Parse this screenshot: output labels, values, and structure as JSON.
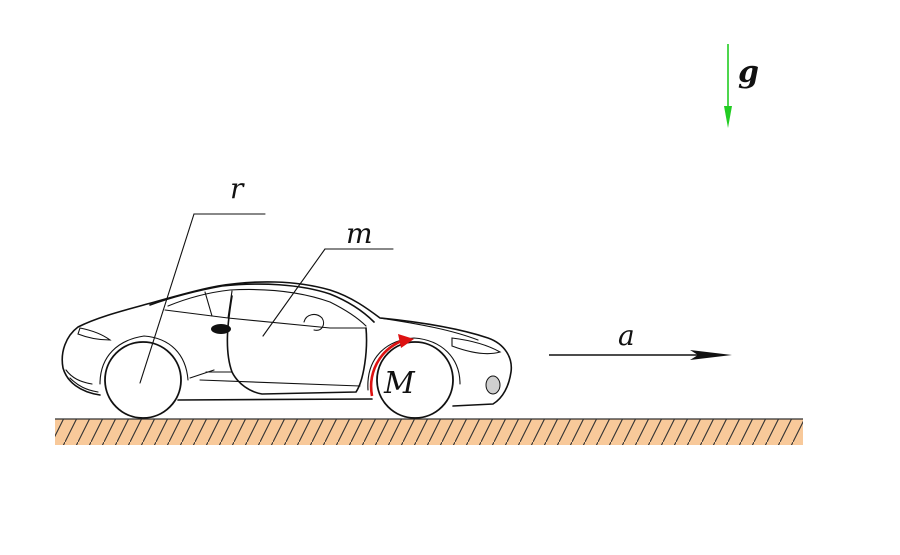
{
  "labels": {
    "gravity": "g",
    "wheel_radius": "r",
    "mass": "m",
    "acceleration": "a",
    "moment": "M"
  },
  "colors": {
    "gravity_arrow": "#22cc22",
    "moment_arrow": "#dd1111",
    "ground_fill": "#f8c99a",
    "ground_hatch": "#333333",
    "outline": "#111111"
  }
}
